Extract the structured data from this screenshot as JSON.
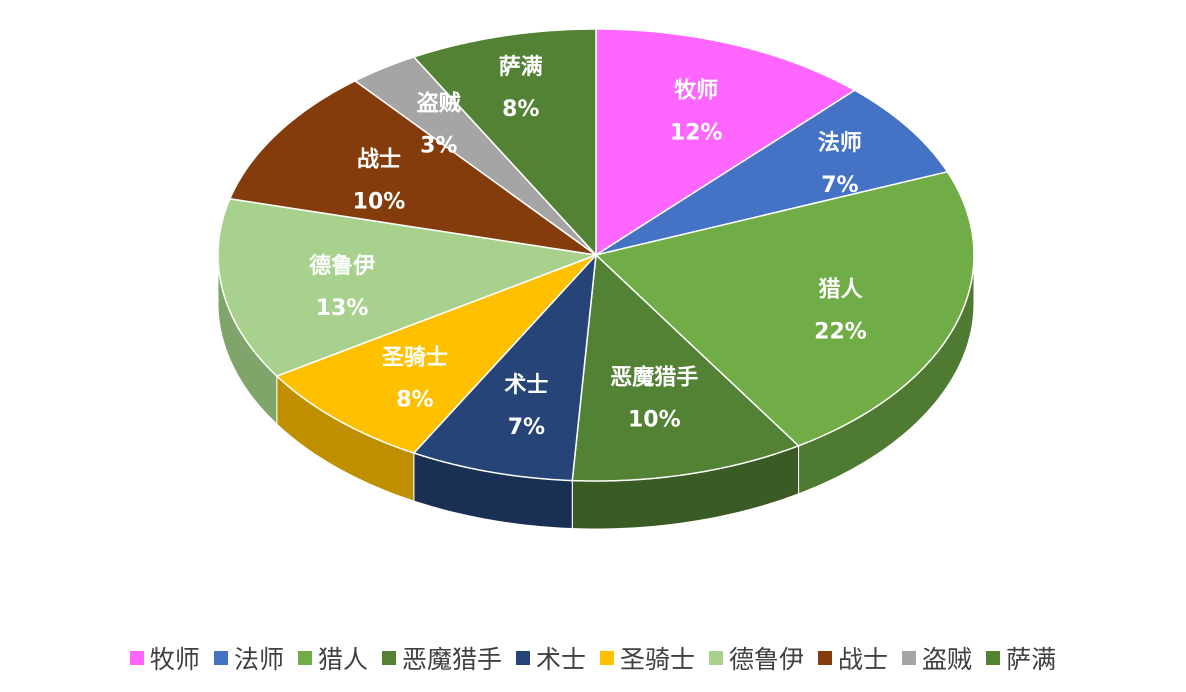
{
  "chart_data": {
    "type": "pie",
    "categories": [
      "牧师",
      "法师",
      "猎人",
      "恶魔猎手",
      "术士",
      "圣骑士",
      "德鲁伊",
      "战士",
      "盗贼",
      "萨满"
    ],
    "values": [
      12,
      7,
      22,
      10,
      7,
      8,
      13,
      10,
      3,
      8
    ],
    "value_labels": [
      "12%",
      "7%",
      "22%",
      "10%",
      "7%",
      "8%",
      "13%",
      "10%",
      "3%",
      "8%"
    ],
    "colors": [
      "#FF66FF",
      "#4472C4",
      "#70AD47",
      "#548235",
      "#264478",
      "#FFC000",
      "#A9D18E",
      "#843C0C",
      "#A5A5A5",
      "#548235"
    ],
    "side_colors": [
      "#C24FC2",
      "#2F5597",
      "#4E7A31",
      "#3B5B25",
      "#1A2F54",
      "#C08F00",
      "#7FA56A",
      "#5C2A08",
      "#7F7F7F",
      "#3B5B25"
    ],
    "style": "3d",
    "legend_position": "bottom"
  }
}
